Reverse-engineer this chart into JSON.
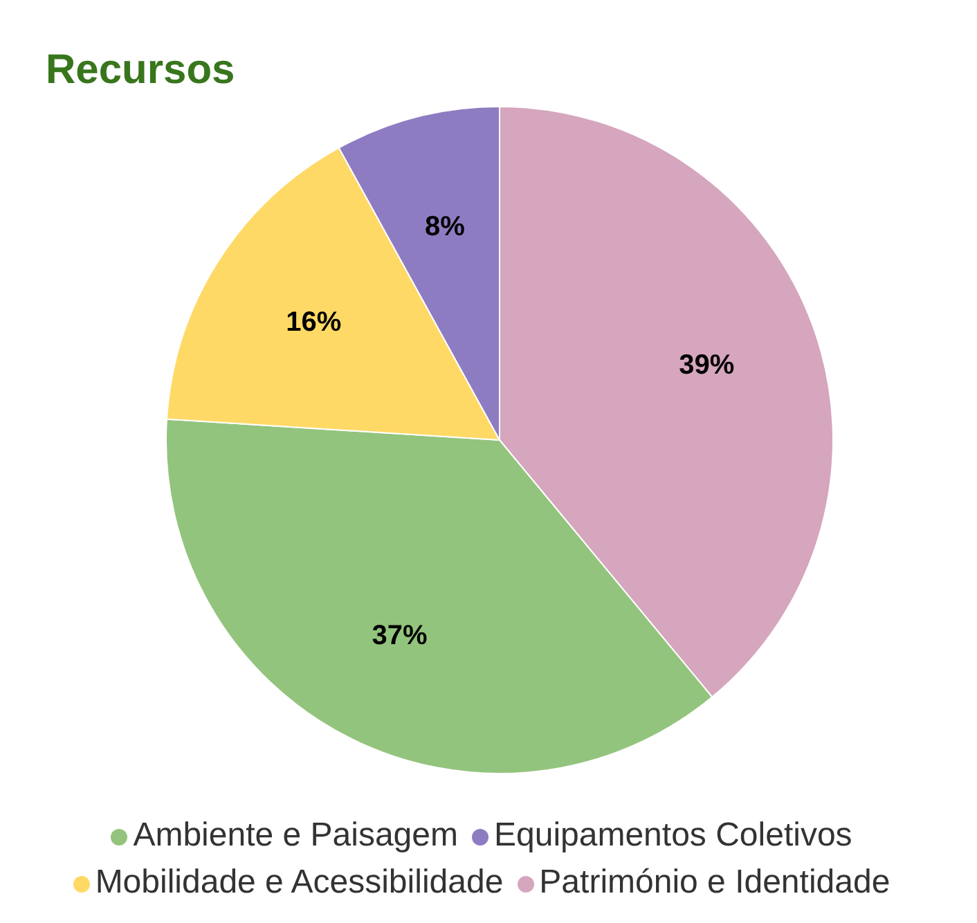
{
  "chart_data": {
    "type": "pie",
    "title": "Recursos",
    "categories": [
      "Património e Identidade",
      "Ambiente e Paisagem",
      "Mobilidade e Acessibilidade",
      "Equipamentos Coletivos"
    ],
    "values": [
      39,
      37,
      16,
      8
    ],
    "value_labels": [
      "39%",
      "37%",
      "16%",
      "8%"
    ],
    "colors": [
      "#d5a6bd",
      "#93c47d",
      "#ffd966",
      "#8e7cc3"
    ],
    "legend": "bottom"
  }
}
